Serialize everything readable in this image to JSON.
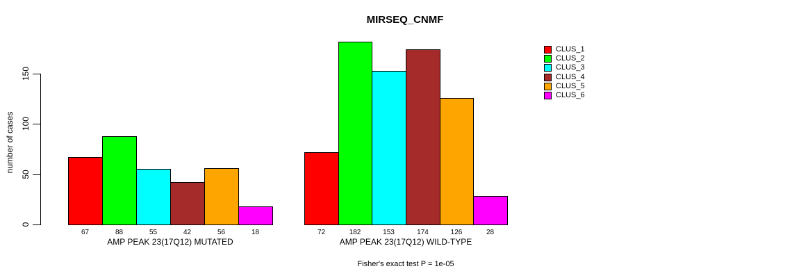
{
  "chart_data": {
    "type": "bar",
    "title": "MIRSEQ_CNMF",
    "ylabel": "number of cases",
    "xlabel": "",
    "subtitle": "Fisher's exact test P = 1e-05",
    "yticks": [
      0,
      50,
      100,
      150
    ],
    "axis_max": 150,
    "ylim": [
      0,
      185
    ],
    "grid": false,
    "legend_position": "right-outside",
    "categories": [
      "AMP PEAK 23(17Q12) MUTATED",
      "AMP PEAK 23(17Q12) WILD-TYPE"
    ],
    "series": [
      {
        "name": "CLUS_1",
        "color": "#FF0000",
        "values": [
          67,
          72
        ]
      },
      {
        "name": "CLUS_2",
        "color": "#00FF00",
        "values": [
          88,
          182
        ]
      },
      {
        "name": "CLUS_3",
        "color": "#00FFFF",
        "values": [
          55,
          153
        ]
      },
      {
        "name": "CLUS_4",
        "color": "#A52A2A",
        "values": [
          42,
          174
        ]
      },
      {
        "name": "CLUS_5",
        "color": "#FFA500",
        "values": [
          56,
          126
        ]
      },
      {
        "name": "CLUS_6",
        "color": "#FF00FF",
        "values": [
          18,
          28
        ]
      }
    ],
    "bar_value_labels_shown": true,
    "background_color": "#FFFFFF",
    "axis_color": "#000000"
  }
}
